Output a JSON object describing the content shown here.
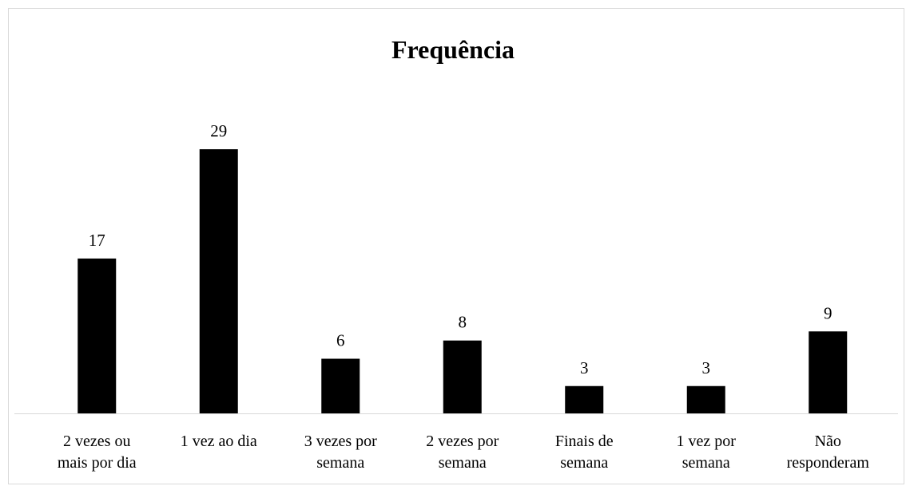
{
  "chart_data": {
    "type": "bar",
    "title": "Frequência",
    "categories": [
      "2 vezes ou mais por dia",
      "1 vez ao dia",
      "3 vezes por semana",
      "2 vezes por semana",
      "Finais de semana",
      "1 vez por semana",
      "Não responderam"
    ],
    "values": [
      17,
      29,
      6,
      8,
      3,
      3,
      9
    ],
    "color": "#000000"
  }
}
